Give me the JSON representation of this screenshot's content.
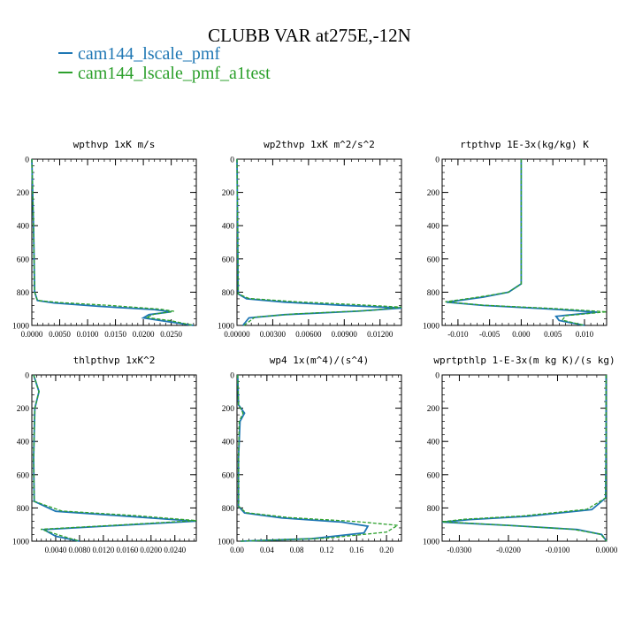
{
  "title": "CLUBB VAR at275E,-12N",
  "legend": [
    {
      "label": "cam144_lscale_pmf",
      "color": "#1f77b4"
    },
    {
      "label": "cam144_lscale_pmf_a1test",
      "color": "#2ca02c"
    }
  ],
  "chart_data": [
    {
      "type": "line",
      "title": "wpthvp   1xK m/s",
      "xlim": [
        0,
        0.0295
      ],
      "ylim": [
        0,
        1000
      ],
      "y_reversed": true,
      "xticks": [
        0,
        0.005,
        0.01,
        0.015,
        0.02,
        0.025
      ],
      "xtick_labels": [
        "0.0000",
        "0.0050",
        "0.0100",
        "0.0150",
        "0.0200",
        "0.0250"
      ],
      "yticks": [
        0,
        200,
        400,
        600,
        800,
        1000
      ],
      "ytick_labels": [
        "0",
        "200",
        "400",
        "600",
        "800",
        "1000"
      ],
      "series": [
        {
          "name": "cam144_lscale_pmf",
          "x": [
            0,
            0.0003,
            0.0005,
            0.001,
            0.004,
            0.012,
            0.022,
            0.025,
            0.021,
            0.02,
            0.024,
            0.029
          ],
          "y": [
            0,
            400,
            800,
            850,
            865,
            885,
            905,
            918,
            935,
            955,
            975,
            1000
          ]
        },
        {
          "name": "cam144_lscale_pmf_a1test",
          "x": [
            0,
            0.0003,
            0.0005,
            0.001,
            0.005,
            0.014,
            0.023,
            0.0255,
            0.022,
            0.0205,
            0.025,
            0.029
          ],
          "y": [
            0,
            400,
            800,
            850,
            862,
            880,
            902,
            915,
            932,
            952,
            972,
            1000
          ]
        }
      ]
    },
    {
      "type": "line",
      "title": "wp2thvp   1xK m^2/s^2",
      "xlim": [
        0,
        0.0138
      ],
      "ylim": [
        0,
        1000
      ],
      "y_reversed": true,
      "xticks": [
        0,
        0.003,
        0.006,
        0.009,
        0.012
      ],
      "xtick_labels": [
        "0.00000",
        "0.00300",
        "0.00600",
        "0.00900",
        "0.01200"
      ],
      "yticks": [
        0,
        200,
        400,
        600,
        800,
        1000
      ],
      "ytick_labels": [
        "0",
        "200",
        "400",
        "600",
        "800",
        "1000"
      ],
      "series": [
        {
          "name": "cam144_lscale_pmf",
          "x": [
            0,
            5e-05,
            0.0001,
            0.0008,
            0.004,
            0.009,
            0.0138,
            0.01,
            0.004,
            0.001,
            0.0005
          ],
          "y": [
            0,
            400,
            810,
            840,
            860,
            880,
            895,
            915,
            935,
            955,
            1000
          ]
        },
        {
          "name": "cam144_lscale_pmf_a1test",
          "x": [
            0,
            5e-05,
            0.0001,
            0.001,
            0.005,
            0.01,
            0.0138,
            0.0112,
            0.005,
            0.0015,
            0.0006
          ],
          "y": [
            0,
            400,
            810,
            838,
            858,
            875,
            890,
            910,
            930,
            950,
            1000
          ]
        }
      ]
    },
    {
      "type": "line",
      "title": "rtpthvp   1E-3x(kg/kg) K",
      "xlim": [
        -0.0125,
        0.0135
      ],
      "ylim": [
        0,
        1000
      ],
      "y_reversed": true,
      "xticks": [
        -0.01,
        -0.005,
        0,
        0.005,
        0.01
      ],
      "xtick_labels": [
        "-0.010",
        "-0.005",
        "0.000",
        "0.005",
        "0.010"
      ],
      "yticks": [
        0,
        200,
        400,
        600,
        800,
        1000
      ],
      "ytick_labels": [
        "0",
        "200",
        "400",
        "600",
        "800",
        "1000"
      ],
      "series": [
        {
          "name": "cam144_lscale_pmf",
          "x": [
            0,
            0,
            0,
            -0.002,
            -0.006,
            -0.0118,
            -0.006,
            0.004,
            0.012,
            0.0055,
            0.006,
            0.01
          ],
          "y": [
            0,
            400,
            750,
            800,
            830,
            860,
            880,
            900,
            920,
            945,
            970,
            1000
          ]
        },
        {
          "name": "cam144_lscale_pmf_a1test",
          "x": [
            0,
            0,
            0,
            -0.002,
            -0.0065,
            -0.012,
            -0.006,
            0.005,
            0.0135,
            0.007,
            0.0065,
            0.01
          ],
          "y": [
            0,
            400,
            750,
            800,
            828,
            858,
            878,
            898,
            918,
            942,
            968,
            1000
          ]
        }
      ]
    },
    {
      "type": "line",
      "title": "thlpthvp   1xK^2",
      "xlim": [
        0,
        0.0276
      ],
      "ylim": [
        0,
        1000
      ],
      "y_reversed": true,
      "xticks": [
        0.004,
        0.008,
        0.012,
        0.016,
        0.02,
        0.024
      ],
      "xtick_labels": [
        "0.0040",
        "0.0080",
        "0.0120",
        "0.0160",
        "0.0200",
        "0.0240"
      ],
      "yticks": [
        0,
        200,
        400,
        600,
        800,
        1000
      ],
      "ytick_labels": [
        "0",
        "200",
        "400",
        "600",
        "800",
        "1000"
      ],
      "series": [
        {
          "name": "cam144_lscale_pmf",
          "x": [
            0.0003,
            0.0012,
            0.0005,
            0.0003,
            0.0004,
            0.004,
            0.016,
            0.0275,
            0.012,
            0.002,
            0.004,
            0.008
          ],
          "y": [
            0,
            100,
            200,
            500,
            760,
            820,
            850,
            880,
            910,
            930,
            970,
            1000
          ]
        },
        {
          "name": "cam144_lscale_pmf_a1test",
          "x": [
            0.0003,
            0.0012,
            0.0005,
            0.0003,
            0.0004,
            0.005,
            0.018,
            0.0276,
            0.013,
            0.0015,
            0.005,
            0.008
          ],
          "y": [
            0,
            100,
            200,
            500,
            760,
            818,
            848,
            876,
            906,
            928,
            968,
            1000
          ]
        }
      ]
    },
    {
      "type": "line",
      "title": "wp4   1x(m^4)/(s^4)",
      "xlim": [
        0,
        0.22
      ],
      "ylim": [
        0,
        1000
      ],
      "y_reversed": true,
      "xticks": [
        0,
        0.04,
        0.08,
        0.12,
        0.16,
        0.2
      ],
      "xtick_labels": [
        "0.00",
        "0.04",
        "0.08",
        "0.12",
        "0.16",
        "0.20"
      ],
      "yticks": [
        0,
        200,
        400,
        600,
        800,
        1000
      ],
      "ytick_labels": [
        "0",
        "200",
        "400",
        "600",
        "800",
        "1000"
      ],
      "series": [
        {
          "name": "cam144_lscale_pmf",
          "x": [
            0.001,
            0.002,
            0.01,
            0.004,
            0.002,
            0.002,
            0.01,
            0.06,
            0.14,
            0.175,
            0.17,
            0.1,
            0.005
          ],
          "y": [
            0,
            180,
            230,
            280,
            500,
            790,
            830,
            860,
            885,
            910,
            950,
            985,
            1000
          ]
        },
        {
          "name": "cam144_lscale_pmf_a1test",
          "x": [
            0.001,
            0.002,
            0.008,
            0.003,
            0.002,
            0.002,
            0.012,
            0.07,
            0.16,
            0.215,
            0.2,
            0.12,
            0.005
          ],
          "y": [
            0,
            180,
            230,
            280,
            500,
            790,
            828,
            858,
            882,
            905,
            945,
            982,
            1000
          ]
        }
      ]
    },
    {
      "type": "line",
      "title": "wprtpthlp   1-E-3x(m kg K)/(s kg)",
      "xlim": [
        -0.0335,
        0
      ],
      "ylim": [
        0,
        1000
      ],
      "y_reversed": true,
      "xticks": [
        -0.03,
        -0.02,
        -0.01,
        0
      ],
      "xtick_labels": [
        "-0.0300",
        "-0.0200",
        "-0.0100",
        "0.0000"
      ],
      "yticks": [
        0,
        200,
        400,
        600,
        800,
        1000
      ],
      "ytick_labels": [
        "0",
        "200",
        "400",
        "600",
        "800",
        "1000"
      ],
      "series": [
        {
          "name": "cam144_lscale_pmf",
          "x": [
            -0.0001,
            -0.0001,
            -0.0002,
            -0.003,
            -0.016,
            -0.028,
            -0.0335,
            -0.02,
            -0.006,
            -0.001,
            0
          ],
          "y": [
            0,
            400,
            740,
            810,
            850,
            870,
            885,
            905,
            930,
            960,
            1000
          ]
        },
        {
          "name": "cam144_lscale_pmf_a1test",
          "x": [
            -0.0001,
            -0.0001,
            -0.0002,
            -0.004,
            -0.017,
            -0.029,
            -0.0335,
            -0.021,
            -0.007,
            -0.0012,
            0
          ],
          "y": [
            0,
            400,
            740,
            808,
            848,
            868,
            883,
            903,
            928,
            958,
            1000
          ]
        }
      ]
    }
  ]
}
